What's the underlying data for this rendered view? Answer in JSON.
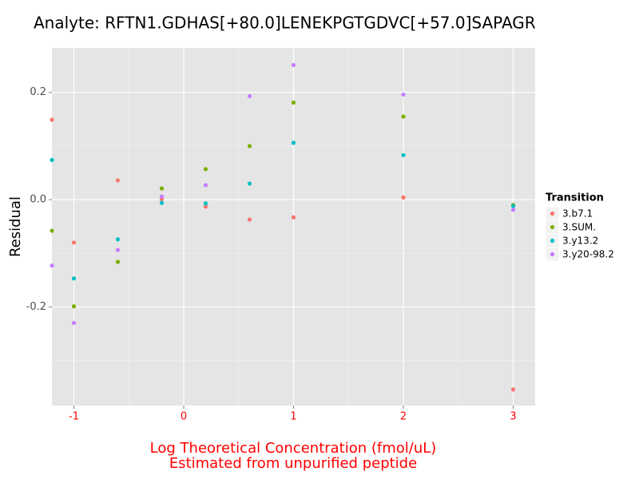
{
  "chart_data": {
    "type": "scatter",
    "title": "Analyte: RFTN1.GDHAS[+80.0]LENEKPGTGDVC[+57.0]SAPAGR",
    "xlabel": [
      "Log Theoretical Concentration (fmol/uL)",
      "Estimated from unpurified peptide"
    ],
    "xlabel_color": "#FF0000",
    "xtick_color": "#FF0000",
    "ylabel": "Residual",
    "legend_title": "Transition",
    "legend": "right",
    "grid": true,
    "xlim": [
      -1.2,
      3.2
    ],
    "ylim": [
      -0.384,
      0.283
    ],
    "xticks": [
      -1,
      0,
      1,
      2,
      3
    ],
    "yticks": [
      0.2,
      {
        "value": 0,
        "label": "0.0"
      },
      -0.2
    ],
    "x": [
      -1.2,
      -1,
      -0.6,
      -0.2,
      0.2,
      0.6,
      1,
      2,
      3
    ],
    "series": [
      {
        "name": "3.b7.1",
        "color": "#F8766D",
        "values": [
          0.149,
          -0.08,
          0.036,
          0.001,
          -0.013,
          -0.037,
          -0.033,
          0.004,
          -0.354
        ]
      },
      {
        "name": "3.SUM.",
        "color": "#7CAE00",
        "values": [
          -0.058,
          -0.199,
          -0.116,
          0.021,
          0.057,
          0.1,
          0.181,
          0.155,
          -0.01
        ]
      },
      {
        "name": "3.y13.2",
        "color": "#00BFC4",
        "values": [
          0.074,
          -0.147,
          -0.074,
          -0.006,
          -0.007,
          0.03,
          0.106,
          0.083,
          -0.012
        ]
      },
      {
        "name": "3.y20-98.2",
        "color": "#C77CFF",
        "values": [
          -0.123,
          -0.23,
          -0.094,
          0.006,
          0.027,
          0.193,
          0.251,
          0.196,
          -0.019
        ]
      }
    ]
  }
}
